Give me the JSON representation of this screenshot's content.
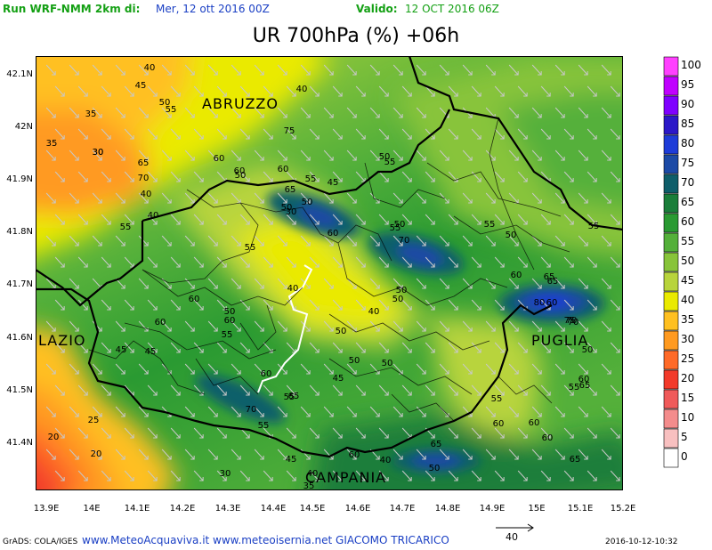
{
  "header": {
    "run_label": "Run WRF-NMM 2km di:",
    "run_date": "Mer, 12 ott 2016 00Z",
    "valid_label": "Valido:",
    "valid_date": "12 OCT 2016 06Z"
  },
  "title": "UR 700hPa (%) +06h",
  "axes": {
    "lat_ticks": [
      "42.1N",
      "42N",
      "41.9N",
      "41.8N",
      "41.7N",
      "41.6N",
      "41.5N",
      "41.4N"
    ],
    "lon_ticks": [
      "13.9E",
      "14E",
      "14.1E",
      "14.2E",
      "14.3E",
      "14.4E",
      "14.5E",
      "14.6E",
      "14.7E",
      "14.8E",
      "14.9E",
      "15E",
      "15.1E",
      "15.2E"
    ]
  },
  "regions": [
    "ABRUZZO",
    "LAZIO",
    "PUGLIA",
    "CAMPANIA"
  ],
  "contour_labels": [
    "40",
    "45",
    "50",
    "55",
    "40",
    "35",
    "30",
    "35",
    "30",
    "60",
    "60",
    "65",
    "70",
    "40",
    "75",
    "50",
    "45",
    "55",
    "60",
    "50",
    "50",
    "30",
    "50",
    "65",
    "55",
    "40",
    "55",
    "60",
    "70",
    "50",
    "55",
    "55",
    "50",
    "55",
    "65",
    "60",
    "60",
    "80",
    "65",
    "75",
    "70",
    "50",
    "50",
    "55",
    "60",
    "60",
    "60",
    "45",
    "45",
    "55",
    "50",
    "40",
    "50",
    "40",
    "60",
    "65",
    "60",
    "40",
    "50",
    "50",
    "55",
    "45",
    "70",
    "55",
    "50",
    "65",
    "60",
    "55",
    "20",
    "25",
    "20",
    "30",
    "35",
    "40",
    "45",
    "60",
    "60",
    "65",
    "70",
    "50",
    "55",
    "60",
    "65"
  ],
  "legend": {
    "levels": [
      "100",
      "95",
      "90",
      "85",
      "80",
      "75",
      "70",
      "65",
      "60",
      "55",
      "50",
      "45",
      "40",
      "35",
      "30",
      "25",
      "20",
      "15",
      "10",
      "5",
      "0"
    ],
    "colors": [
      "#ff40ff",
      "#c000ff",
      "#7f00ff",
      "#2c18c8",
      "#1e3cd8",
      "#1c4aa6",
      "#0e5e6a",
      "#1a7e3a",
      "#2a9a32",
      "#54b03a",
      "#88c43a",
      "#b8d43c",
      "#eaea00",
      "#ffc020",
      "#ff9a20",
      "#ff6a28",
      "#f23a2a",
      "#f05a5a",
      "#f48c8c",
      "#f8c0c0",
      "#ffffff"
    ]
  },
  "vector_ref": "40",
  "footer": {
    "software": "GrADS: COLA/IGES",
    "credit": "www.MeteoAcquaviva.it www.meteoisernia.net GIACOMO TRICARICO",
    "timestamp": "2016-10-12-10:32"
  }
}
